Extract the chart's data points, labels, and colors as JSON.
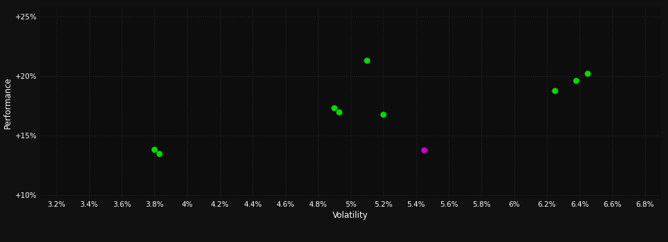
{
  "background_color": "#111111",
  "plot_bg_color": "#0d0d0d",
  "grid_color": "#2a2a2a",
  "text_color": "#ffffff",
  "xlabel": "Volatility",
  "ylabel": "Performance",
  "xlim": [
    0.031,
    0.069
  ],
  "ylim": [
    0.097,
    0.258
  ],
  "xticks": [
    0.032,
    0.034,
    0.036,
    0.038,
    0.04,
    0.042,
    0.044,
    0.046,
    0.048,
    0.05,
    0.052,
    0.054,
    0.056,
    0.058,
    0.06,
    0.062,
    0.064,
    0.066,
    0.068
  ],
  "yticks": [
    0.1,
    0.15,
    0.2,
    0.25
  ],
  "ytick_labels": [
    "+10%",
    "+15%",
    "+20%",
    "+25%"
  ],
  "points_green_x": [
    0.038,
    0.0383,
    0.049,
    0.0493,
    0.051,
    0.052,
    0.0625,
    0.0638,
    0.0645
  ],
  "points_green_y": [
    0.138,
    0.1345,
    0.173,
    0.1695,
    0.213,
    0.1675,
    0.1875,
    0.196,
    0.202
  ],
  "points_magenta_x": [
    0.0545
  ],
  "points_magenta_y": [
    0.1375
  ],
  "green_color": "#00dd00",
  "magenta_color": "#cc00cc",
  "marker_size": 40
}
